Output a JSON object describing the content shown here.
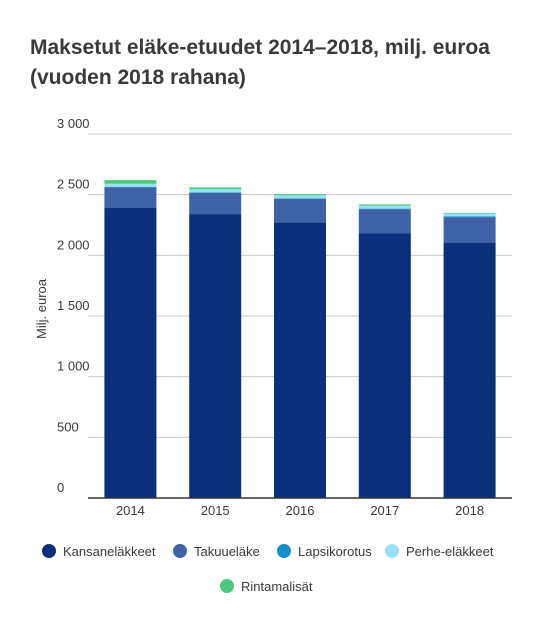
{
  "chart_data": {
    "type": "bar",
    "stacked": true,
    "title": "Maksetut eläke-etuudet 2014–2018, milj. euroa (vuoden 2018 rahana)",
    "xlabel": "",
    "ylabel": "Milj. euroa",
    "ylim": [
      0,
      3000
    ],
    "yticks": [
      0,
      500,
      1000,
      1500,
      2000,
      2500,
      3000
    ],
    "ytick_labels": [
      "0",
      "500",
      "1 000",
      "1 500",
      "2 000",
      "2 500",
      "3 000"
    ],
    "grid": true,
    "legend_position": "bottom",
    "categories": [
      "2014",
      "2015",
      "2016",
      "2017",
      "2018"
    ],
    "series": [
      {
        "name": "Kansaneläkkeet",
        "color": "#0b2f7a",
        "values": [
          2390,
          2340,
          2270,
          2180,
          2105
        ]
      },
      {
        "name": "Takuueläke",
        "color": "#3f63a6",
        "values": [
          170,
          175,
          195,
          200,
          210
        ]
      },
      {
        "name": "Lapsikorotus",
        "color": "#1391c8",
        "values": [
          5,
          5,
          5,
          5,
          5
        ]
      },
      {
        "name": "Perhe-eläkkeet",
        "color": "#99dff6",
        "values": [
          25,
          25,
          25,
          25,
          25
        ]
      },
      {
        "name": "Rintamalisät",
        "color": "#4cc97b",
        "values": [
          30,
          15,
          10,
          10,
          5
        ]
      }
    ]
  }
}
